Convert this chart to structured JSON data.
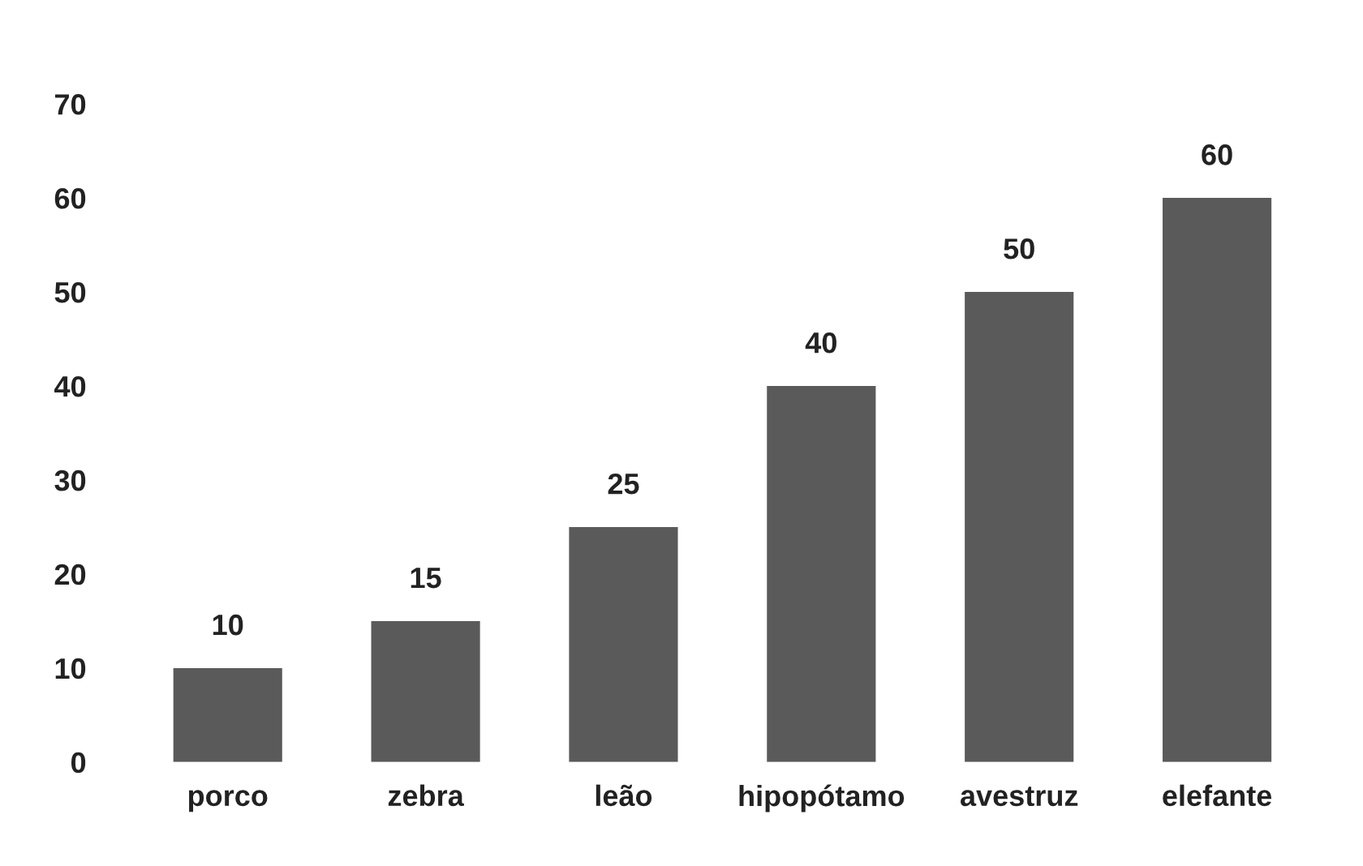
{
  "chart_data": {
    "type": "bar",
    "categories": [
      "porco",
      "zebra",
      "leão",
      "hipopótamo",
      "avestruz",
      "elefante"
    ],
    "values": [
      10,
      15,
      25,
      40,
      50,
      60
    ],
    "color": "#5a5a5a",
    "ylim": [
      0,
      70
    ],
    "yticks": [
      0,
      10,
      20,
      30,
      40,
      50,
      60,
      70
    ],
    "data_labels": true,
    "grid": false
  }
}
